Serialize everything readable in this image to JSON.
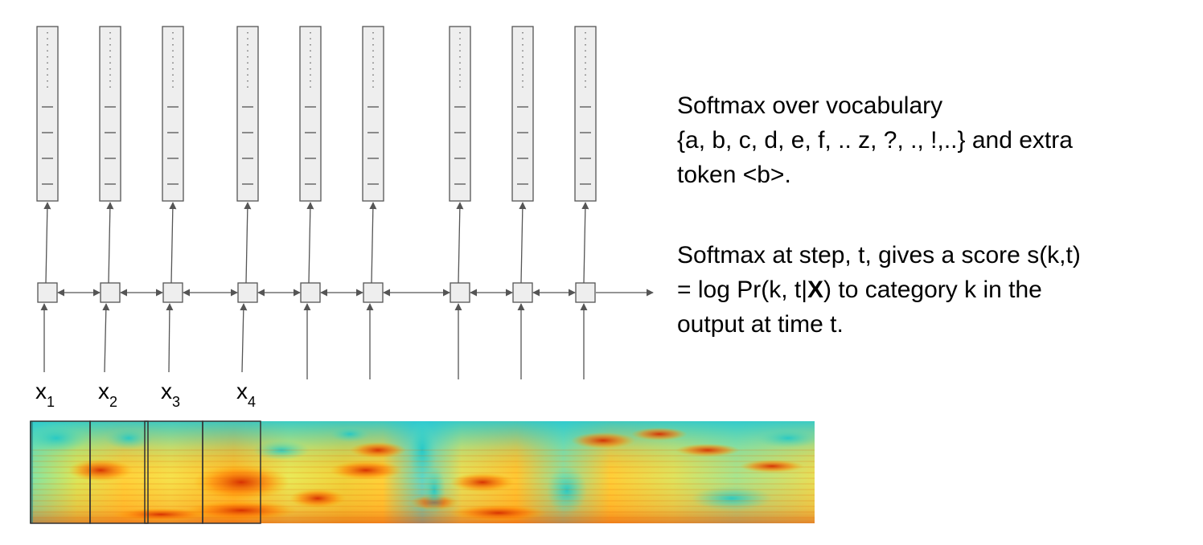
{
  "inputs": [
    {
      "label": "x",
      "sub": "1"
    },
    {
      "label": "x",
      "sub": "2"
    },
    {
      "label": "x",
      "sub": "3"
    },
    {
      "label": "x",
      "sub": "4"
    }
  ],
  "description": {
    "softmax_vocab_line1": "Softmax over vocabulary",
    "softmax_vocab_line2": "{a, b, c, d, e, f, .. z, ?, ., !,..} and extra",
    "softmax_vocab_line3": "token <b>.",
    "score_line1": "Softmax at step, t, gives a score s(k,t)",
    "score_line2_pre": "= log Pr(k, t|",
    "score_line2_bold": "X",
    "score_line2_post": ") to category k in the",
    "score_line3": "output at time t."
  },
  "colors": {
    "box_fill": "#eeeeee",
    "box_stroke": "#555555",
    "arrow": "#555555",
    "frame": "#333333"
  }
}
